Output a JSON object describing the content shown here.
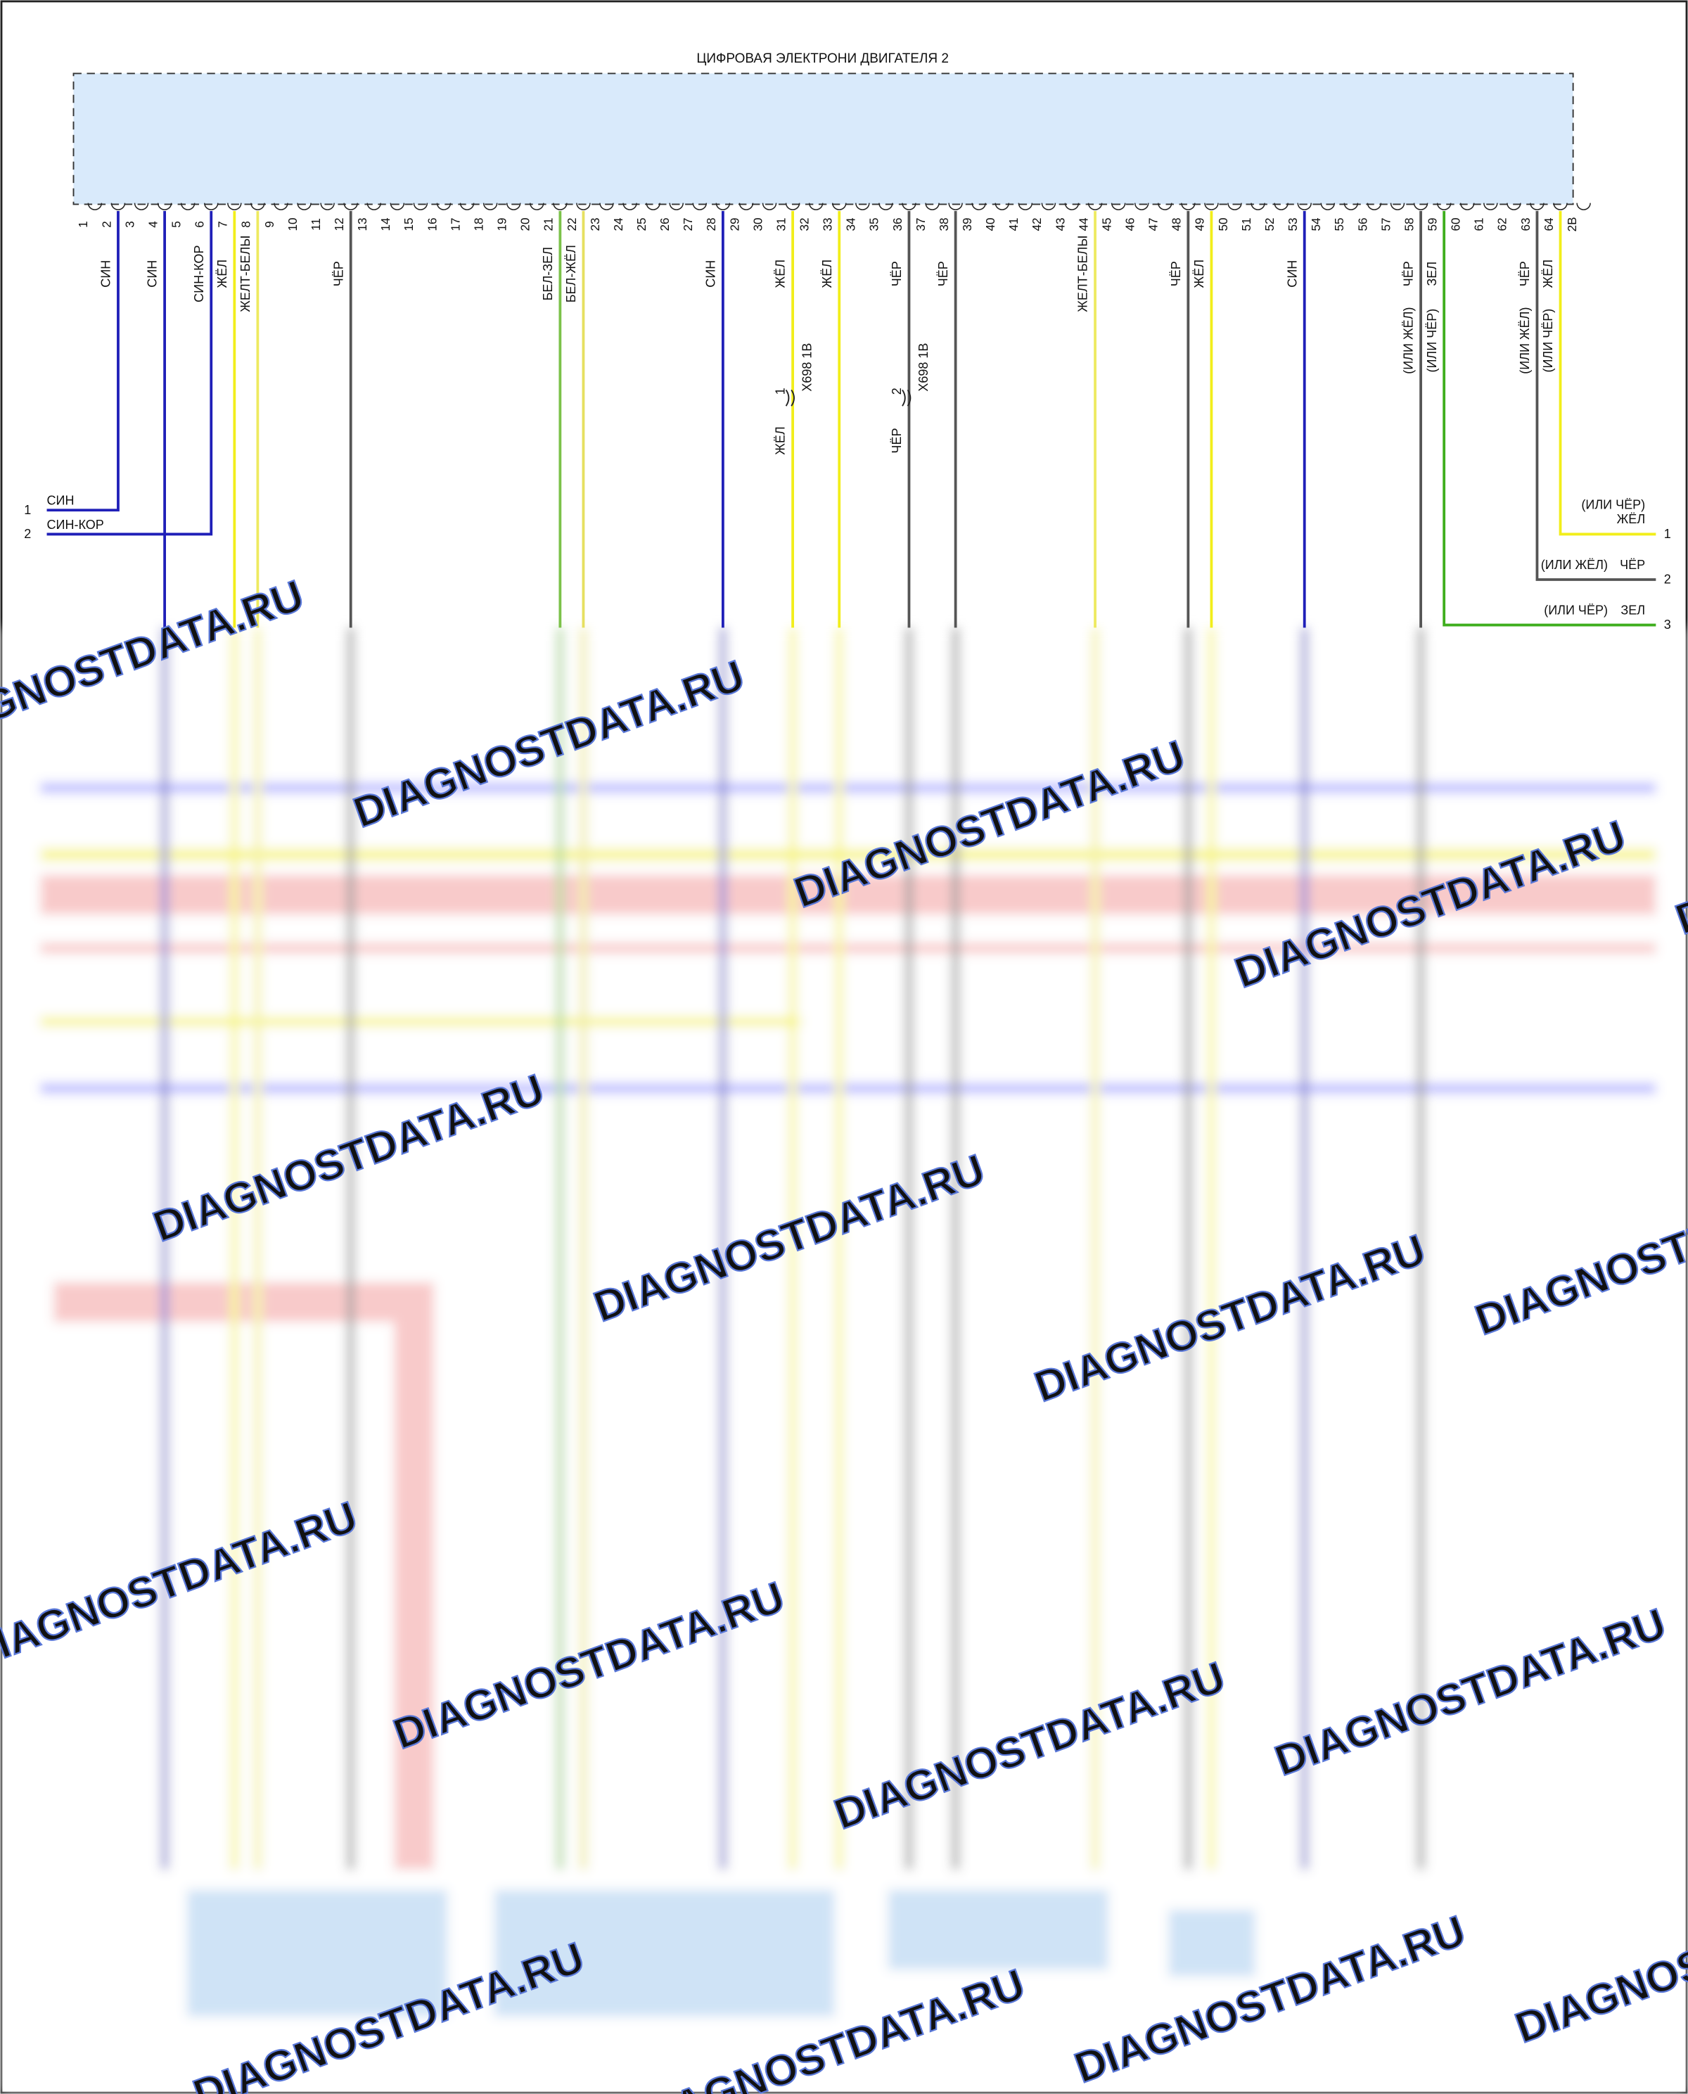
{
  "header": {
    "title": "ЦИФРОВАЯ ЭЛЕКТРОНИ ДВИГАТЕЛЯ 2"
  },
  "pins": [
    {
      "label": "1"
    },
    {
      "label": "2",
      "wire": {
        "label": "СИН",
        "color": "#1f1fb8"
      }
    },
    {
      "label": "3"
    },
    {
      "label": "4",
      "wire": {
        "label": "СИН",
        "color": "#1f1fb8"
      }
    },
    {
      "label": "5"
    },
    {
      "label": "6",
      "wire": {
        "label": "СИН-КОР",
        "color": "#1f1fb8"
      }
    },
    {
      "label": "7",
      "wire": {
        "label": "ЖЁЛ",
        "color": "#f2ee1a"
      }
    },
    {
      "label": "8",
      "wire": {
        "label": "ЖЕЛТ-БЕЛЫ",
        "color": "#eeea60"
      }
    },
    {
      "label": "9"
    },
    {
      "label": "10"
    },
    {
      "label": "11"
    },
    {
      "label": "12",
      "wire": {
        "label": "ЧЁР",
        "color": "#555555"
      }
    },
    {
      "label": "13"
    },
    {
      "label": "14"
    },
    {
      "label": "15"
    },
    {
      "label": "16"
    },
    {
      "label": "17"
    },
    {
      "label": "18"
    },
    {
      "label": "19"
    },
    {
      "label": "20"
    },
    {
      "label": "21",
      "wire": {
        "label": "БЕЛ-ЗЕЛ",
        "color": "#7cc24a"
      }
    },
    {
      "label": "22",
      "wire": {
        "label": "БЕЛ-ЖЁЛ",
        "color": "#e6e060"
      }
    },
    {
      "label": "23"
    },
    {
      "label": "24"
    },
    {
      "label": "25"
    },
    {
      "label": "26"
    },
    {
      "label": "27"
    },
    {
      "label": "28",
      "wire": {
        "label": "СИН",
        "color": "#1f1fb8"
      }
    },
    {
      "label": "29"
    },
    {
      "label": "30"
    },
    {
      "label": "31",
      "wire": {
        "label": "ЖЁЛ",
        "color": "#f2ee1a",
        "connector": {
          "name": "X698 1В",
          "pin": "1",
          "below": "ЖЁЛ"
        }
      }
    },
    {
      "label": "32"
    },
    {
      "label": "33",
      "wire": {
        "label": "ЖЁЛ",
        "color": "#f2ee1a"
      }
    },
    {
      "label": "34"
    },
    {
      "label": "35"
    },
    {
      "label": "36",
      "wire": {
        "label": "ЧЁР",
        "color": "#555555",
        "connector": {
          "name": "X698 1В",
          "pin": "2",
          "below": "ЧЁР"
        }
      }
    },
    {
      "label": "37"
    },
    {
      "label": "38",
      "wire": {
        "label": "ЧЁР",
        "color": "#555555"
      }
    },
    {
      "label": "39"
    },
    {
      "label": "40"
    },
    {
      "label": "41"
    },
    {
      "label": "42"
    },
    {
      "label": "43"
    },
    {
      "label": "44",
      "wire": {
        "label": "ЖЕЛТ-БЕЛЫ",
        "color": "#eeea60"
      }
    },
    {
      "label": "45"
    },
    {
      "label": "46"
    },
    {
      "label": "47"
    },
    {
      "label": "48",
      "wire": {
        "label": "ЧЁР",
        "color": "#555555"
      }
    },
    {
      "label": "49",
      "wire": {
        "label": "ЖЁЛ",
        "color": "#f2ee1a"
      }
    },
    {
      "label": "50"
    },
    {
      "label": "51"
    },
    {
      "label": "52"
    },
    {
      "label": "53",
      "wire": {
        "label": "СИН",
        "color": "#1f1fb8"
      }
    },
    {
      "label": "54"
    },
    {
      "label": "55"
    },
    {
      "label": "56"
    },
    {
      "label": "57"
    },
    {
      "label": "58",
      "wire": {
        "label": "ЧЁР",
        "alt": "(ИЛИ ЖЁЛ)",
        "color": "#555555"
      }
    },
    {
      "label": "59",
      "wire": {
        "label": "ЗЕЛ",
        "alt": "(ИЛИ ЧЁР)",
        "color": "#3fae1e"
      }
    },
    {
      "label": "60"
    },
    {
      "label": "61"
    },
    {
      "label": "62"
    },
    {
      "label": "63",
      "wire": {
        "label": "ЧЁР",
        "alt": "(ИЛИ ЖЁЛ)",
        "color": "#555555"
      }
    },
    {
      "label": "64",
      "wire": {
        "label": "ЖЁЛ",
        "alt": "(ИЛИ ЧЁР)",
        "color": "#f2ee1a"
      }
    },
    {
      "label": "2В"
    }
  ],
  "left_connector": [
    {
      "num": "1",
      "label": "СИН"
    },
    {
      "num": "2",
      "label": "СИН-КОР"
    }
  ],
  "right_connector": [
    {
      "num": "1",
      "label": "ЖЁЛ",
      "alt": "(ИЛИ ЧЁР)"
    },
    {
      "num": "2",
      "label": "ЧЁР",
      "alt": "(ИЛИ ЖЁЛ)"
    },
    {
      "num": "3",
      "label": "ЗЕЛ",
      "alt": "(ИЛИ ЧЁР)"
    }
  ],
  "watermark": "DIAGNOSTDATA.RU"
}
